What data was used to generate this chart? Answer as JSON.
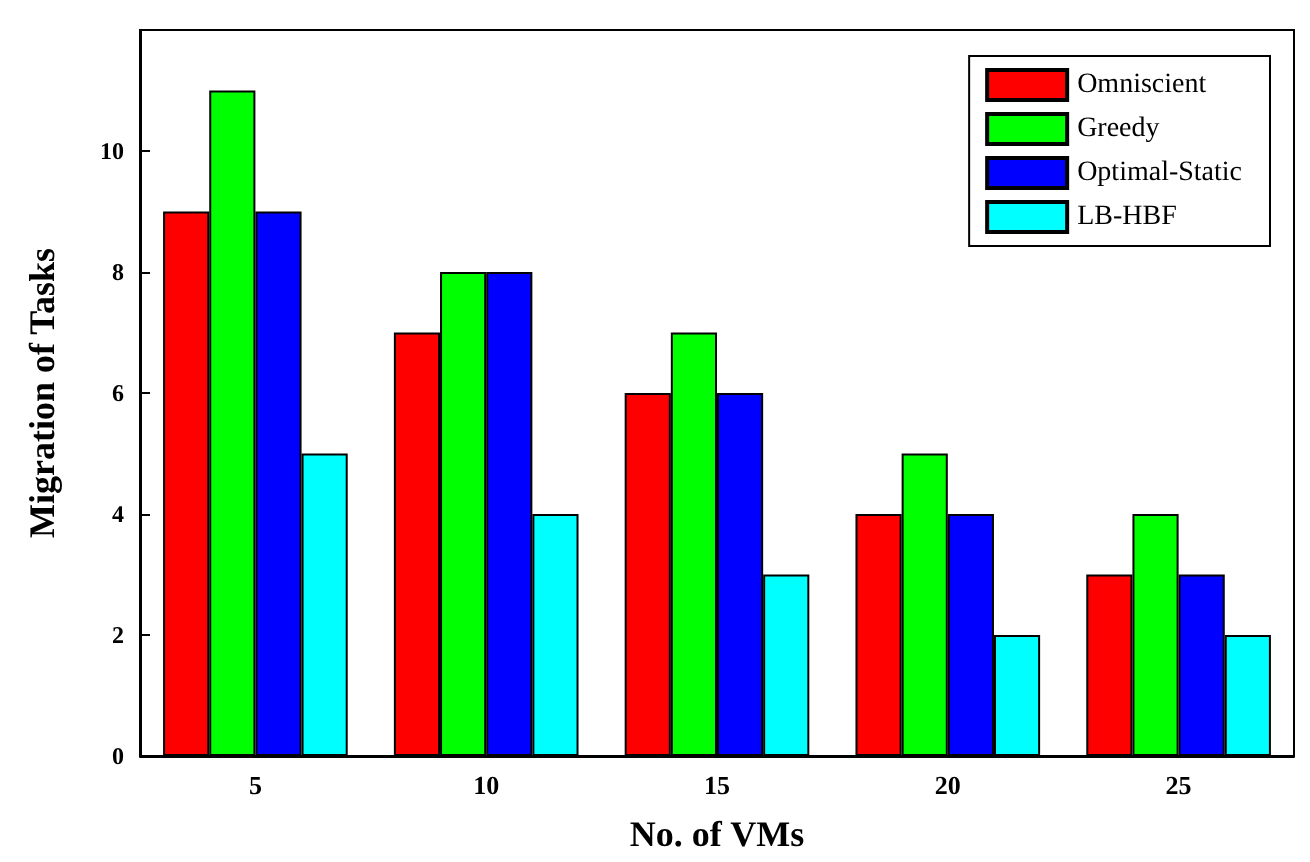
{
  "chart_data": {
    "type": "bar",
    "xlabel": "No. of VMs",
    "ylabel": "Migration of Tasks",
    "categories": [
      "5",
      "10",
      "15",
      "20",
      "25"
    ],
    "series": [
      {
        "name": "Omniscient",
        "color": "#ff0000",
        "values": [
          9,
          7,
          6,
          4,
          3
        ]
      },
      {
        "name": "Greedy",
        "color": "#00ff00",
        "values": [
          11,
          8,
          7,
          5,
          4
        ]
      },
      {
        "name": "Optimal-Static",
        "color": "#0000ff",
        "values": [
          9,
          8,
          6,
          4,
          3
        ]
      },
      {
        "name": "LB-HBF",
        "color": "#00ffff",
        "values": [
          5,
          4,
          3,
          2,
          2
        ]
      }
    ],
    "ylim": [
      0,
      12
    ],
    "yticks": [
      0,
      2,
      4,
      6,
      8,
      10
    ],
    "grid": false,
    "legend": "top right"
  }
}
